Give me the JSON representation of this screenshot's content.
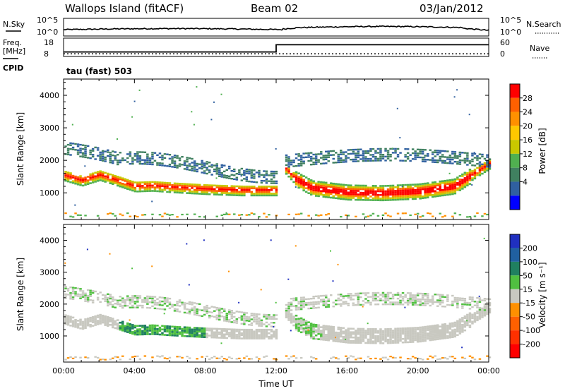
{
  "header": {
    "title": "Wallops Island (fitACF)",
    "beam": "Beam 02",
    "date": "03/Jan/2012"
  },
  "nsky_panel": {
    "left_label": "N.Sky",
    "left_ticks": [
      "10^5",
      "10^0"
    ],
    "right_ticks": [
      "10^5",
      "10^0"
    ],
    "right_label": "N.Search"
  },
  "freq_panel": {
    "left_label": "Freq.",
    "left_unit": "[MHz]",
    "left_ticks": [
      "18",
      "8"
    ],
    "right_ticks": [
      "60",
      "0"
    ],
    "right_label": "Nave",
    "cpid_label": "CPID",
    "cpid_value": "tau (fast) 503",
    "freq_line": {
      "x": [
        0,
        12.0,
        12.0,
        24
      ],
      "y": [
        10.2,
        10.2,
        15.3,
        15.3
      ]
    },
    "nave_line": {
      "y": 5
    }
  },
  "chart_data": [
    {
      "type": "heatmap",
      "quantity": "power",
      "xlabel": "",
      "ylabel": "Slant Range [km]",
      "xlim": [
        0,
        24
      ],
      "ylim": [
        180,
        4500
      ],
      "yticks": [
        1000,
        2000,
        3000,
        4000
      ],
      "colorbar": {
        "label": "Power [dB]",
        "ticks": [
          "28",
          "24",
          "20",
          "16",
          "12",
          "8",
          "4"
        ],
        "colors": [
          "#ff0000",
          "#ff6000",
          "#ff9000",
          "#ffc800",
          "#c8c800",
          "#50b050",
          "#408060",
          "#3060a0",
          "#0000ff"
        ]
      },
      "features": [
        {
          "name": "main band",
          "x": [
            0,
            1,
            2,
            3,
            4,
            5,
            6,
            8,
            10,
            12
          ],
          "y": [
            1540,
            1380,
            1550,
            1380,
            1200,
            1220,
            1180,
            1120,
            1080,
            1080
          ]
        },
        {
          "name": "main band",
          "x": [
            12.5,
            13,
            14,
            16,
            18,
            20,
            22,
            23,
            24
          ],
          "y": [
            1750,
            1450,
            1150,
            1020,
            1000,
            1050,
            1200,
            1550,
            1900
          ]
        }
      ]
    },
    {
      "type": "heatmap",
      "quantity": "velocity",
      "xlabel": "Time UT",
      "ylabel": "Slant Range [km]",
      "xlim": [
        0,
        24
      ],
      "ylim": [
        180,
        4500
      ],
      "xticks": [
        "00:00",
        "04:00",
        "08:00",
        "12:00",
        "16:00",
        "20:00",
        "00:00"
      ],
      "yticks": [
        1000,
        2000,
        3000,
        4000
      ],
      "colorbar": {
        "label": "Velocity [m s⁻¹]",
        "ticks": [
          "200",
          "100",
          "50",
          "15",
          "-15",
          "-50",
          "-100",
          "-200"
        ],
        "colors": [
          "#2030c0",
          "#2060a0",
          "#208060",
          "#50c040",
          "#c8c8c0",
          "#ff9000",
          "#ff6000",
          "#ff3000",
          "#ff0000"
        ]
      }
    }
  ]
}
